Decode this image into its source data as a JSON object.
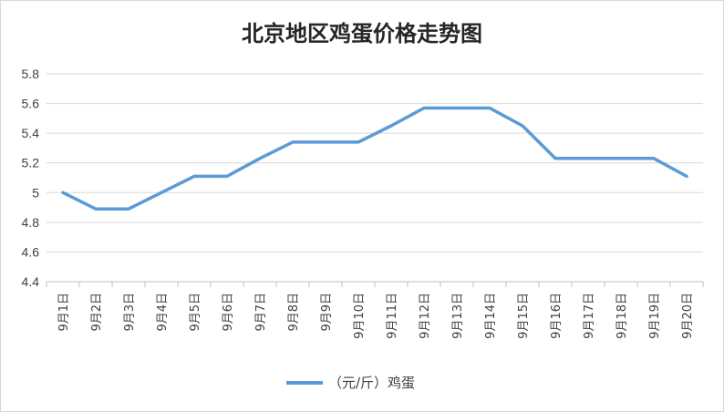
{
  "chart_data": {
    "type": "line",
    "title": "北京地区鸡蛋价格走势图",
    "categories": [
      "9月1日",
      "9月2日",
      "9月3日",
      "9月4日",
      "9月5日",
      "9月6日",
      "9月7日",
      "9月8日",
      "9月9日",
      "9月10日",
      "9月11日",
      "9月12日",
      "9月13日",
      "9月14日",
      "9月15日",
      "9月16日",
      "9月17日",
      "9月18日",
      "9月19日",
      "9月20日"
    ],
    "series": [
      {
        "name": "（元/斤）鸡蛋",
        "color": "#5b9bd5",
        "values": [
          5.0,
          4.89,
          4.89,
          5.0,
          5.11,
          5.11,
          5.23,
          5.34,
          5.34,
          5.34,
          5.45,
          5.57,
          5.57,
          5.57,
          5.45,
          5.23,
          5.23,
          5.23,
          5.23,
          5.11
        ]
      }
    ],
    "ylim": [
      4.4,
      5.8
    ],
    "yticks": [
      "4.4",
      "4.6",
      "4.8",
      "5",
      "5.2",
      "5.4",
      "5.6",
      "5.8"
    ],
    "grid": true,
    "legend_position": "bottom"
  }
}
